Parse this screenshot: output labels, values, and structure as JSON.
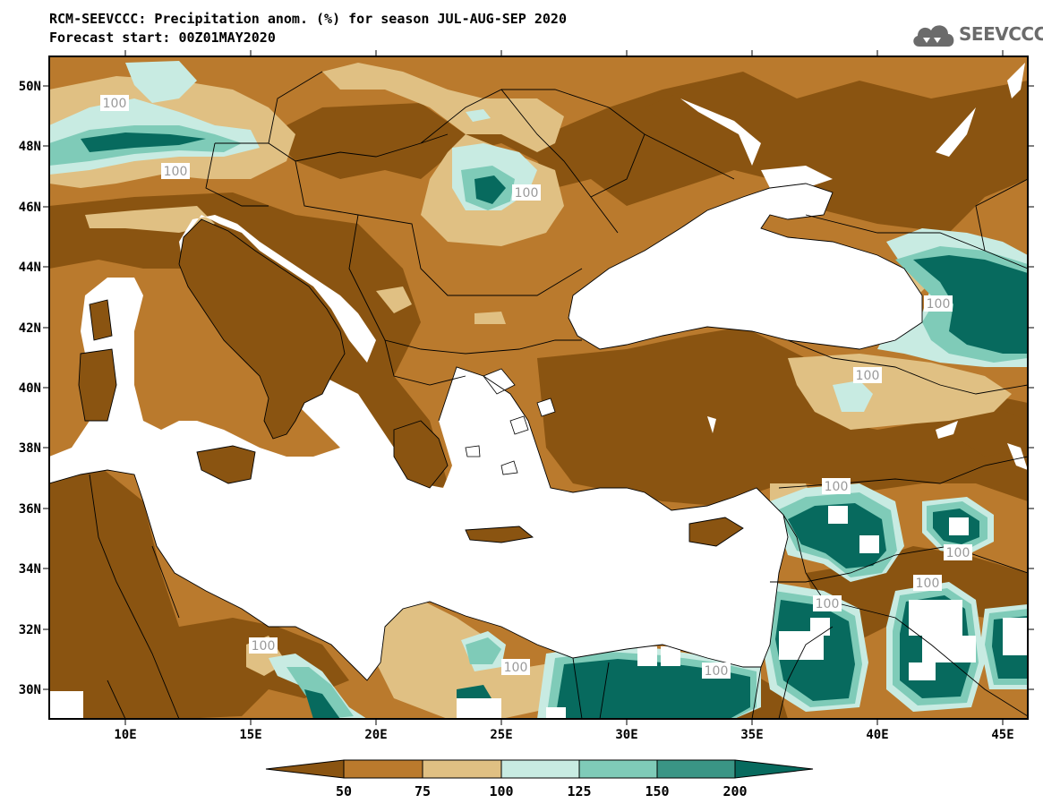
{
  "header": {
    "title_line1": "RCM-SEEVCCC: Precipitation anom. (%) for season JUL-AUG-SEP 2020",
    "title_line2": "Forecast start: 00Z01MAY2020"
  },
  "logo": {
    "text": "SEEVCCC",
    "icon": "cloud-icon"
  },
  "map": {
    "lat_ticks": [
      "50N",
      "48N",
      "46N",
      "44N",
      "42N",
      "40N",
      "38N",
      "36N",
      "34N",
      "32N",
      "30N"
    ],
    "lon_ticks": [
      "10E",
      "15E",
      "20E",
      "25E",
      "30E",
      "35E",
      "40E",
      "45E"
    ],
    "contour_labels": [
      "100",
      "100",
      "100",
      "100",
      "100",
      "100",
      "100",
      "100",
      "100",
      "100",
      "100",
      "100"
    ]
  },
  "legend": {
    "ticks": [
      "50",
      "75",
      "100",
      "125",
      "150",
      "200"
    ],
    "colors": [
      "#8a5411",
      "#ba7a2d",
      "#e0c083",
      "#c8ebe2",
      "#7fcbb8",
      "#3a9585",
      "#076a5e"
    ]
  },
  "colors": {
    "sea": "#ffffff",
    "dry_dark": "#8a5411",
    "dry_mid": "#ba7a2d",
    "dry_light": "#e0c083",
    "wet_light": "#c8ebe2",
    "wet_mid": "#7fcbb8",
    "wet_dark": "#076a5e"
  }
}
